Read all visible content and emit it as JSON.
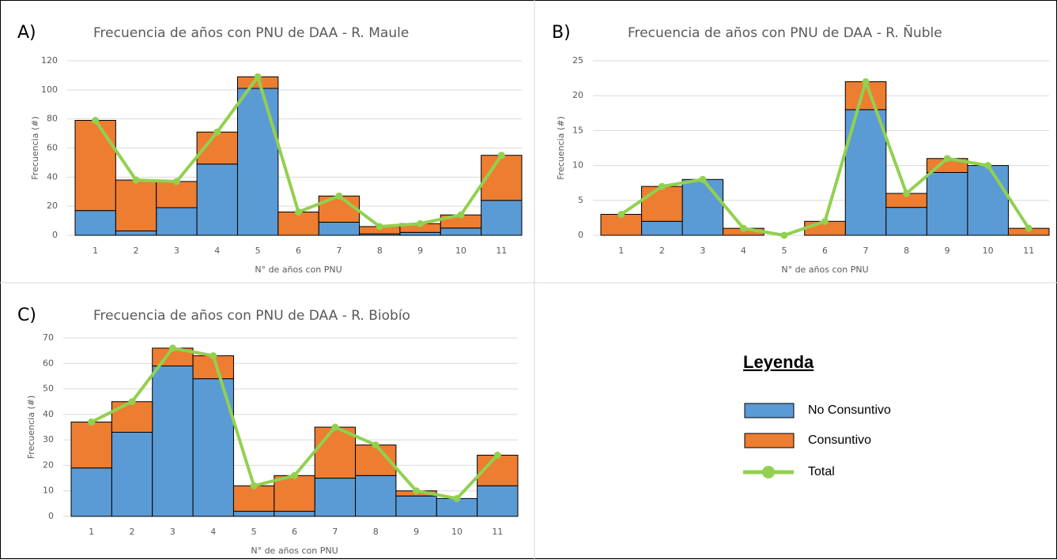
{
  "chart_data": [
    {
      "type": "bar",
      "stacked": true,
      "panel_label": "A)",
      "title": "Frecuencia de años con PNU de DAA - R. Maule",
      "xlabel": "N° de años con PNU",
      "ylabel": "Frecuencia (#)",
      "categories": [
        "1",
        "2",
        "3",
        "4",
        "5",
        "6",
        "7",
        "8",
        "9",
        "10",
        "11"
      ],
      "series": [
        {
          "name": "No Consuntivo",
          "color": "#5b9bd5",
          "values": [
            17,
            3,
            19,
            49,
            101,
            0,
            9,
            1,
            2,
            5,
            24
          ]
        },
        {
          "name": "Consuntivo",
          "color": "#ed7d31",
          "values": [
            62,
            35,
            18,
            22,
            8,
            16,
            18,
            5,
            6,
            9,
            31
          ]
        },
        {
          "name": "Total",
          "color": "#92d050",
          "type": "line",
          "values": [
            79,
            38,
            37,
            71,
            109,
            16,
            27,
            6,
            8,
            14,
            55
          ]
        }
      ],
      "ylim": [
        0,
        120
      ],
      "yticks": [
        0,
        20,
        40,
        60,
        80,
        100,
        120
      ],
      "grid": true
    },
    {
      "type": "bar",
      "stacked": true,
      "panel_label": "B)",
      "title": "Frecuencia de años con PNU de DAA - R. Ñuble",
      "xlabel": "N° de años con PNU",
      "ylabel": "Frecuencia (#)",
      "categories": [
        "1",
        "2",
        "3",
        "4",
        "5",
        "6",
        "7",
        "8",
        "9",
        "10",
        "11"
      ],
      "series": [
        {
          "name": "No Consuntivo",
          "color": "#5b9bd5",
          "values": [
            0,
            2,
            8,
            0,
            0,
            0,
            18,
            4,
            9,
            10,
            0
          ]
        },
        {
          "name": "Consuntivo",
          "color": "#ed7d31",
          "values": [
            3,
            5,
            0,
            1,
            0,
            2,
            4,
            2,
            2,
            0,
            1
          ]
        },
        {
          "name": "Total",
          "color": "#92d050",
          "type": "line",
          "values": [
            3,
            7,
            8,
            1,
            0,
            2,
            22,
            6,
            11,
            10,
            1
          ]
        }
      ],
      "ylim": [
        0,
        25
      ],
      "yticks": [
        0,
        5,
        10,
        15,
        20,
        25
      ],
      "grid": true
    },
    {
      "type": "bar",
      "stacked": true,
      "panel_label": "C)",
      "title": "Frecuencia de años con PNU de DAA - R. Biobío",
      "xlabel": "N° de años con PNU",
      "ylabel": "Frecuencia (#)",
      "categories": [
        "1",
        "2",
        "3",
        "4",
        "5",
        "6",
        "7",
        "8",
        "9",
        "10",
        "11"
      ],
      "series": [
        {
          "name": "No Consuntivo",
          "color": "#5b9bd5",
          "values": [
            19,
            33,
            59,
            54,
            2,
            2,
            15,
            16,
            8,
            7,
            12
          ]
        },
        {
          "name": "Consuntivo",
          "color": "#ed7d31",
          "values": [
            18,
            12,
            7,
            9,
            10,
            14,
            20,
            12,
            2,
            0,
            12
          ]
        },
        {
          "name": "Total",
          "color": "#92d050",
          "type": "line",
          "values": [
            37,
            45,
            66,
            63,
            12,
            16,
            35,
            28,
            10,
            7,
            24
          ]
        }
      ],
      "ylim": [
        0,
        70
      ],
      "yticks": [
        0,
        10,
        20,
        30,
        40,
        50,
        60,
        70
      ],
      "grid": true
    }
  ],
  "legend_title": "Leyenda"
}
